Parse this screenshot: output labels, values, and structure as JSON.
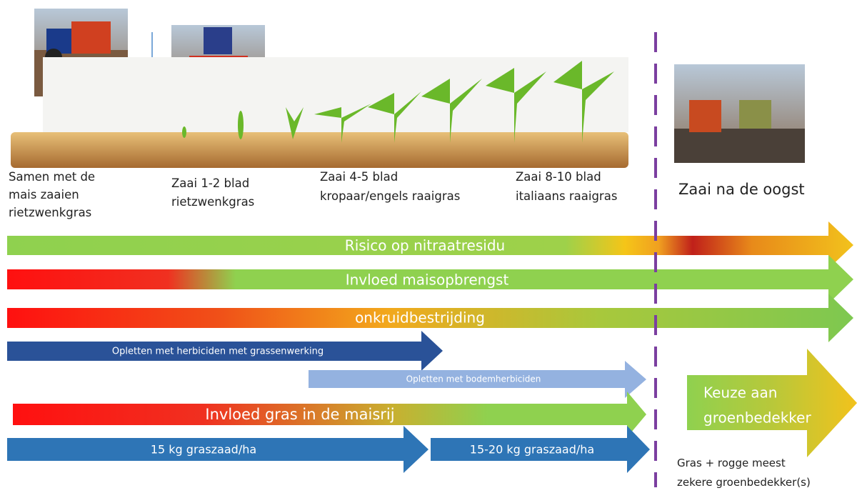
{
  "stages": [
    {
      "lines": [
        "Samen met de",
        "mais zaaien",
        "rietzwenkgras"
      ]
    },
    {
      "lines": [
        "Zaai 1-2 blad",
        "rietzwenkgras"
      ]
    },
    {
      "lines": [
        "Zaai 4-5 blad",
        "kropaar/engels raaigras"
      ]
    },
    {
      "lines": [
        "Zaai 8-10 blad",
        "italiaans raaigras"
      ]
    }
  ],
  "harvest": "Zaai na de oogst",
  "arrows": [
    "Risico op nitraatresidu",
    "Invloed maisopbrengst",
    "onkruidbestrijding",
    "Opletten met herbiciden met grassenwerking",
    "Opletten met bodemherbiciden",
    "Invloed gras in de maisrij",
    "15 kg graszaad/ha",
    "15-20 kg graszaad/ha"
  ],
  "choice": {
    "lines": [
      "Keuze aan",
      "groenbedekker"
    ]
  },
  "note": {
    "lines": [
      "Gras + rogge meest",
      "zekere  groenbedekker(s)"
    ]
  }
}
